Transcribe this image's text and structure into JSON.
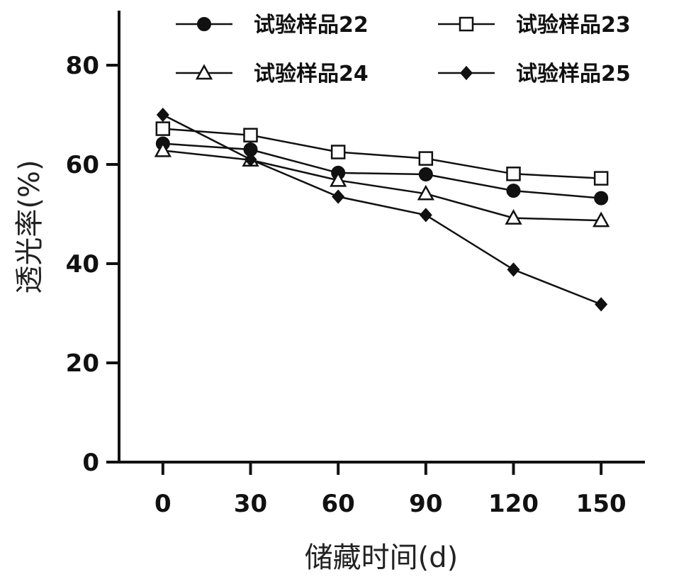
{
  "chart_data": {
    "type": "line",
    "title": "",
    "xlabel": "储藏时间(d)",
    "ylabel": "透光率(%)",
    "x": [
      0,
      30,
      60,
      90,
      120,
      150
    ],
    "xticks": [
      "0",
      "30",
      "60",
      "90",
      "120",
      "150"
    ],
    "yticks": [
      "0",
      "20",
      "40",
      "60",
      "80"
    ],
    "xlim": [
      -15,
      165
    ],
    "ylim": [
      0,
      80
    ],
    "grid": false,
    "legend_position": "top",
    "series": [
      {
        "name": "试验样品22",
        "marker": "filled-circle",
        "values": [
          64.2,
          63.0,
          58.3,
          58.0,
          54.7,
          53.2
        ]
      },
      {
        "name": "试验样品23",
        "marker": "open-square",
        "values": [
          67.2,
          65.9,
          62.5,
          61.2,
          58.1,
          57.2
        ]
      },
      {
        "name": "试验样品24",
        "marker": "open-triangle",
        "values": [
          62.8,
          60.9,
          56.8,
          54.1,
          49.2,
          48.7
        ]
      },
      {
        "name": "试验样品25",
        "marker": "filled-diamond",
        "values": [
          70.0,
          61.0,
          53.5,
          49.8,
          38.8,
          31.8
        ]
      }
    ]
  }
}
